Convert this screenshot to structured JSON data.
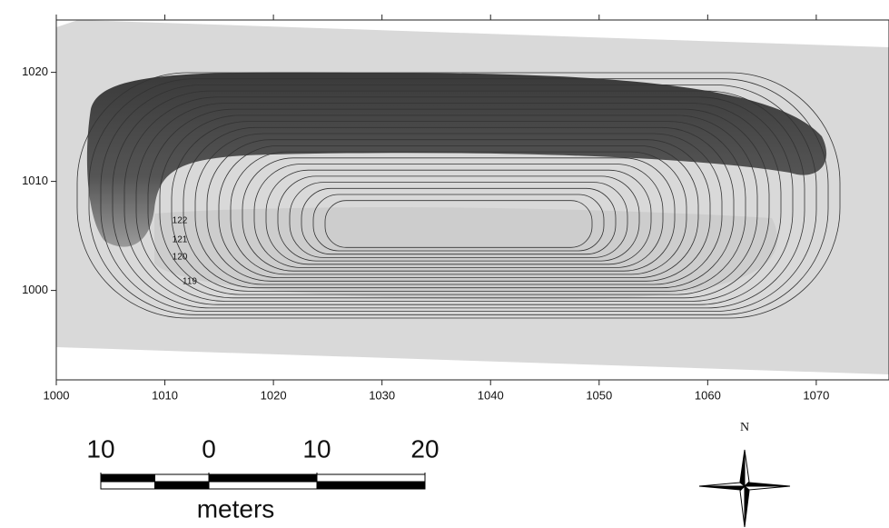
{
  "map": {
    "xlim": [
      1000,
      1076.7
    ],
    "ylim": [
      991.8,
      1024.8
    ],
    "xticks": [
      1000,
      1010,
      1020,
      1030,
      1040,
      1050,
      1060,
      1070
    ],
    "yticks": [
      1000,
      1010,
      1020
    ],
    "contour_labels": [
      "122",
      "121",
      "120",
      "119"
    ]
  },
  "scale_bar": {
    "ticks": [
      {
        "value": -10,
        "label": "10"
      },
      0,
      10,
      20
    ],
    "unit": "meters"
  },
  "north_arrow": {
    "label": "N"
  }
}
